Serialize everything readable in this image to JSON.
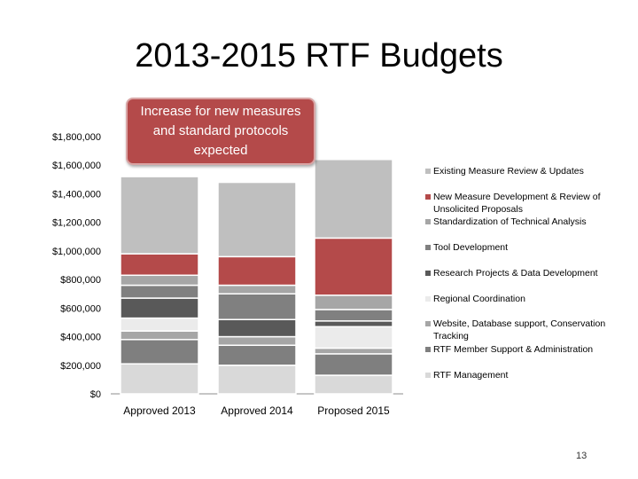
{
  "slide": {
    "title": "2013-2015 RTF Budgets",
    "callout": "Increase for new measures and standard protocols expected",
    "page_number": "13"
  },
  "colors": {
    "RTF Management": "#d9d9d9",
    "RTF Member Support & Administration": "#7f7f7f",
    "Website, Database support, Conservation Tracking": "#a6a6a6",
    "Regional Coordination": "#ebebeb",
    "Research Projects & Data Development": "#595959",
    "Tool Development": "#808080",
    "Standardization of Technical Analysis": "#a6a6a6",
    "New Measure Development & Review of Unsolicited Proposals": "#b44a4a",
    "Existing Measure Review & Updates": "#bfbfbf"
  },
  "chart_data": {
    "type": "bar",
    "stacked": true,
    "title": "2013-2015 RTF Budgets",
    "categories": [
      "Approved 2013",
      "Approved 2014",
      "Proposed 2015"
    ],
    "ylim": [
      0,
      1800000
    ],
    "yticks": [
      0,
      200000,
      400000,
      600000,
      800000,
      1000000,
      1200000,
      1400000,
      1600000,
      1800000
    ],
    "ytick_labels": [
      "$0",
      "$200,000",
      "$400,000",
      "$600,000",
      "$800,000",
      "$1,000,000",
      "$1,200,000",
      "$1,400,000",
      "$1,600,000",
      "$1,800,000"
    ],
    "series": [
      {
        "name": "RTF Management",
        "values": [
          210000,
          200000,
          130000
        ]
      },
      {
        "name": "RTF Member Support & Administration",
        "values": [
          170000,
          140000,
          150000
        ]
      },
      {
        "name": "Website, Database support, Conservation Tracking",
        "values": [
          60000,
          60000,
          40000
        ]
      },
      {
        "name": "Regional Coordination",
        "values": [
          90000,
          0,
          150000
        ]
      },
      {
        "name": "Research Projects & Data Development",
        "values": [
          140000,
          120000,
          40000
        ]
      },
      {
        "name": "Tool Development",
        "values": [
          90000,
          180000,
          80000
        ]
      },
      {
        "name": "Standardization of Technical Analysis",
        "values": [
          70000,
          60000,
          100000
        ]
      },
      {
        "name": "New Measure Development & Review of Unsolicited Proposals",
        "values": [
          150000,
          200000,
          400000
        ]
      },
      {
        "name": "Existing Measure Review & Updates",
        "values": [
          540000,
          520000,
          550000
        ]
      }
    ],
    "legend": [
      "Existing Measure Review & Updates",
      "New Measure Development & Review of Unsolicited Proposals",
      "Standardization of Technical Analysis",
      "Tool Development",
      "Research Projects & Data Development",
      "Regional Coordination",
      "Website, Database support, Conservation Tracking",
      "RTF Member Support & Administration",
      "RTF Management"
    ],
    "legend_position": "right",
    "grid": false
  }
}
